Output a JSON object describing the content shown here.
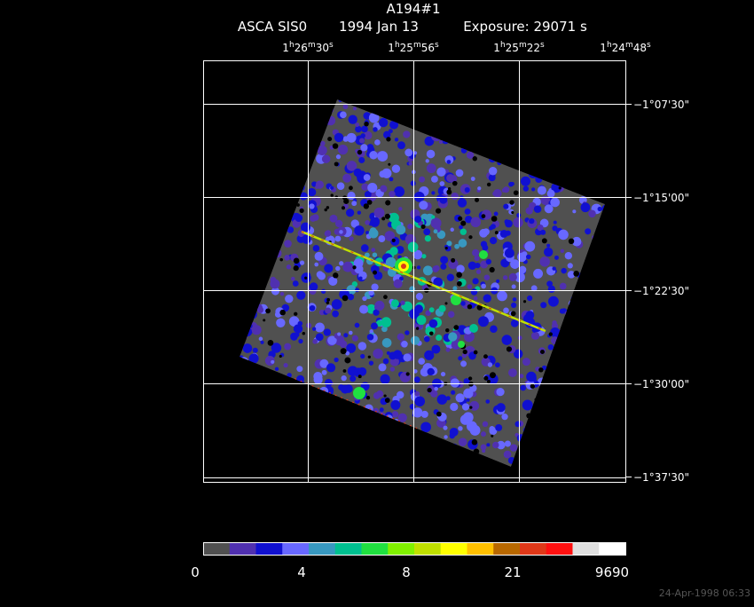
{
  "header": {
    "title": "A194#1",
    "instrument": "ASCA SIS0",
    "date": "1994 Jan 13",
    "exposure": "Exposure: 29071 s"
  },
  "ra_labels": [
    [
      "1",
      "h",
      "26",
      "m",
      "30",
      "s"
    ],
    [
      "1",
      "h",
      "25",
      "m",
      "56",
      "s"
    ],
    [
      "1",
      "h",
      "25",
      "m",
      "22",
      "s"
    ],
    [
      "1",
      "h",
      "24",
      "m",
      "48",
      "s"
    ]
  ],
  "dec_labels": [
    "−1°07'30\"",
    "−1°15'00\"",
    "−1°22'30\"",
    "−1°30'00\"",
    "−1°37'30\""
  ],
  "colorbar": {
    "colors": [
      "#505050",
      "#5030b0",
      "#1010d0",
      "#6868ff",
      "#3898c0",
      "#00c090",
      "#20e040",
      "#80f000",
      "#c0e000",
      "#ffff00",
      "#ffc000",
      "#b86800",
      "#e03818",
      "#ff1010",
      "#e0e0e0",
      "#ffffff"
    ],
    "labels": [
      "0",
      "4",
      "8",
      "21",
      "9690"
    ]
  },
  "timestamp": "24-Apr-1998 06:33"
}
